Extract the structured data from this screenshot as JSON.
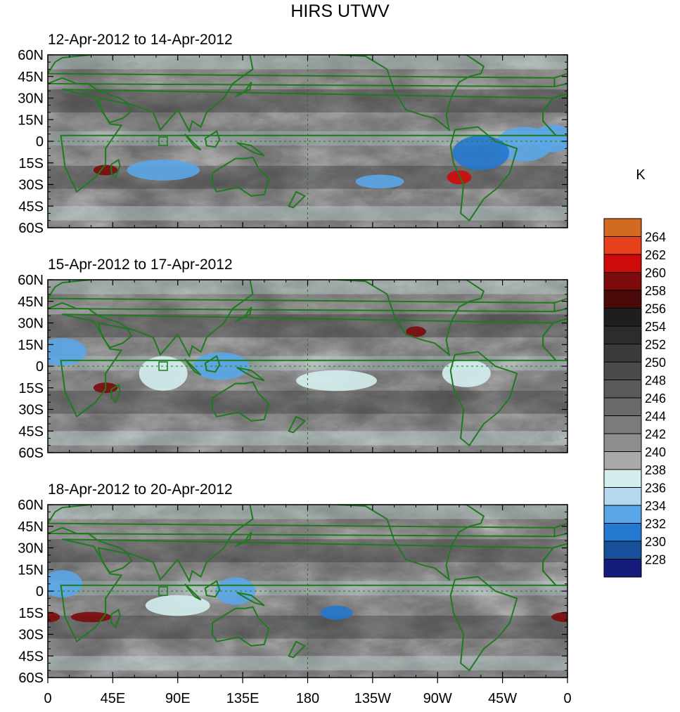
{
  "title": "HIRS UTWV",
  "panels": [
    {
      "subtitle": "12-Apr-2012 to 14-Apr-2012"
    },
    {
      "subtitle": "15-Apr-2012 to 17-Apr-2012"
    },
    {
      "subtitle": "18-Apr-2012 to 20-Apr-2012"
    }
  ],
  "map": {
    "lon_range": [
      0,
      360
    ],
    "lat_range": [
      -60,
      60
    ],
    "lat_ticks": [
      {
        "value": 60,
        "label": "60N"
      },
      {
        "value": 45,
        "label": "45N"
      },
      {
        "value": 30,
        "label": "30N"
      },
      {
        "value": 15,
        "label": "15N"
      },
      {
        "value": 0,
        "label": "0"
      },
      {
        "value": -15,
        "label": "15S"
      },
      {
        "value": -30,
        "label": "30S"
      },
      {
        "value": -45,
        "label": "45S"
      },
      {
        "value": -60,
        "label": "60S"
      }
    ],
    "lon_ticks": [
      {
        "value": 0,
        "label": "0"
      },
      {
        "value": 45,
        "label": "45E"
      },
      {
        "value": 90,
        "label": "90E"
      },
      {
        "value": 135,
        "label": "135E"
      },
      {
        "value": 180,
        "label": "180"
      },
      {
        "value": 225,
        "label": "135W"
      },
      {
        "value": 270,
        "label": "90W"
      },
      {
        "value": 315,
        "label": "45W"
      },
      {
        "value": 360,
        "label": "0"
      }
    ],
    "coastline_color": "#1f7a1f"
  },
  "colorbar": {
    "unit": "K",
    "levels": [
      {
        "label": "264",
        "color": "#d26a22"
      },
      {
        "label": "262",
        "color": "#e8401c"
      },
      {
        "label": "260",
        "color": "#cf0a0a"
      },
      {
        "label": "258",
        "color": "#7c0b0b"
      },
      {
        "label": "256",
        "color": "#4b0a0a"
      },
      {
        "label": "254",
        "color": "#1e1e1e"
      },
      {
        "label": "252",
        "color": "#2c2c2c"
      },
      {
        "label": "250",
        "color": "#3b3b3b"
      },
      {
        "label": "248",
        "color": "#4a4a4a"
      },
      {
        "label": "246",
        "color": "#5a5a5a"
      },
      {
        "label": "244",
        "color": "#6a6a6a"
      },
      {
        "label": "242",
        "color": "#7b7b7b"
      },
      {
        "label": "240",
        "color": "#8e8e8e"
      },
      {
        "label": "238",
        "color": "#a9a9a9"
      },
      {
        "label": "236",
        "color": "#d4eeee"
      },
      {
        "label": "234",
        "color": "#b4d8ec"
      },
      {
        "label": "232",
        "color": "#5aa6e8"
      },
      {
        "label": "230",
        "color": "#2478cf"
      },
      {
        "label": "228",
        "color": "#174f9a"
      },
      {
        "label": "",
        "color": "#151b78"
      }
    ]
  }
}
